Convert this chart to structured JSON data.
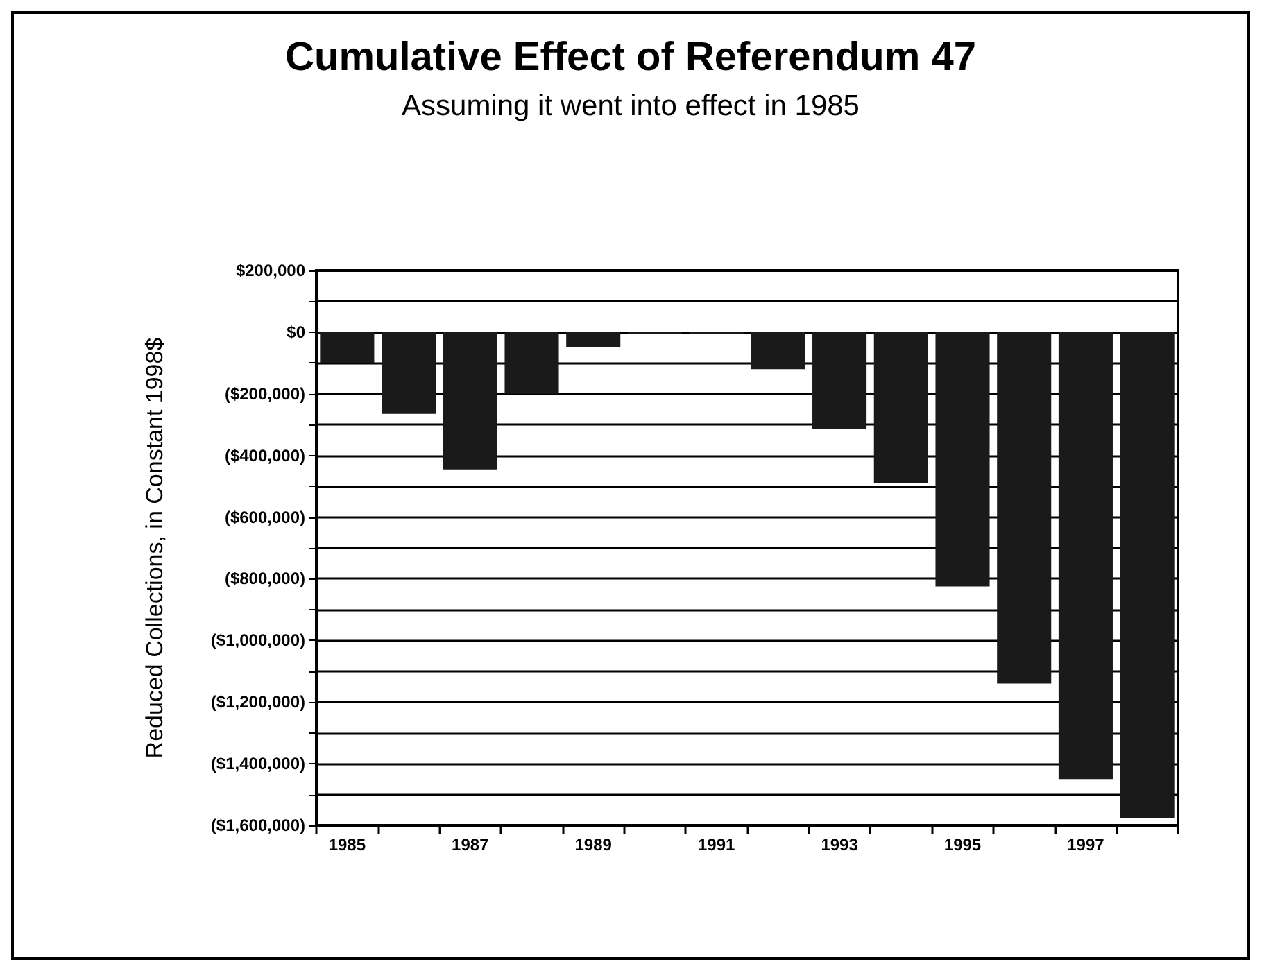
{
  "chart_data": {
    "type": "bar",
    "title": "Cumulative Effect of Referendum 47",
    "subtitle": "Assuming it went into effect in 1985",
    "ylabel": "Reduced Collections, in Constant 1998$",
    "categories": [
      "1985",
      null,
      "1987",
      null,
      "1989",
      null,
      "1991",
      null,
      "1993",
      null,
      "1995",
      null,
      "1997",
      null
    ],
    "values": [
      -100000,
      -265000,
      -445000,
      -200000,
      -50000,
      -5000,
      -5000,
      -120000,
      -315000,
      -490000,
      -825000,
      -1140000,
      -1450000,
      -1575000
    ],
    "color": "#1a1a1a",
    "ylim": [
      -1600000,
      200000
    ],
    "yticks": [
      {
        "value": -1600000,
        "label": "($1,600,000)"
      },
      {
        "value": -1500000,
        "label": null
      },
      {
        "value": -1400000,
        "label": "($1,400,000)"
      },
      {
        "value": -1300000,
        "label": null
      },
      {
        "value": -1200000,
        "label": "($1,200,000)"
      },
      {
        "value": -1100000,
        "label": null
      },
      {
        "value": -1000000,
        "label": "($1,000,000)"
      },
      {
        "value": -900000,
        "label": null
      },
      {
        "value": -800000,
        "label": "($800,000)"
      },
      {
        "value": -700000,
        "label": null
      },
      {
        "value": -600000,
        "label": "($600,000)"
      },
      {
        "value": -500000,
        "label": null
      },
      {
        "value": -400000,
        "label": "($400,000)"
      },
      {
        "value": -300000,
        "label": null
      },
      {
        "value": -200000,
        "label": "($200,000)"
      },
      {
        "value": -100000,
        "label": null
      },
      {
        "value": 0,
        "label": "$0"
      },
      {
        "value": 100000,
        "label": null
      },
      {
        "value": 200000,
        "label": "$200,000"
      }
    ],
    "grid": "y"
  }
}
